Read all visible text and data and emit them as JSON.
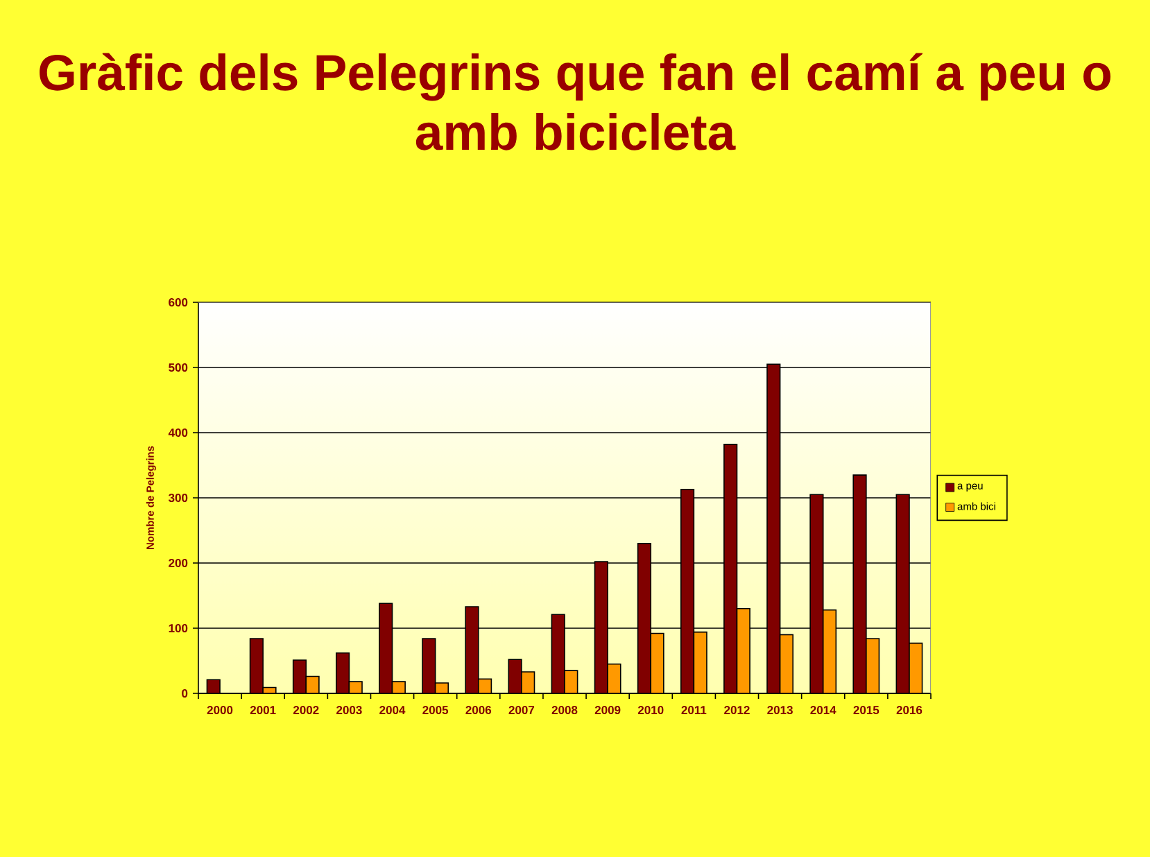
{
  "chart_data": {
    "type": "bar",
    "title": "Gràfic dels Pelegrins que fan el camí a peu o amb bicicleta",
    "ylabel": "Nombre de Pelegrins",
    "categories": [
      "2000",
      "2001",
      "2002",
      "2003",
      "2004",
      "2005",
      "2006",
      "2007",
      "2008",
      "2009",
      "2010",
      "2011",
      "2012",
      "2013",
      "2014",
      "2015",
      "2016"
    ],
    "series": [
      {
        "name": "a peu",
        "color": "#800000",
        "values": [
          21,
          84,
          51,
          62,
          138,
          84,
          133,
          52,
          121,
          202,
          230,
          313,
          382,
          505,
          305,
          335,
          305
        ]
      },
      {
        "name": "amb bici",
        "color": "#ff9900",
        "values": [
          null,
          9,
          26,
          18,
          18,
          16,
          22,
          33,
          35,
          45,
          92,
          94,
          130,
          90,
          128,
          84,
          77
        ]
      }
    ],
    "ylim": [
      0,
      600
    ],
    "yticks": [
      0,
      100,
      200,
      300,
      400,
      500,
      600
    ],
    "grid": "y",
    "legend": "right"
  }
}
